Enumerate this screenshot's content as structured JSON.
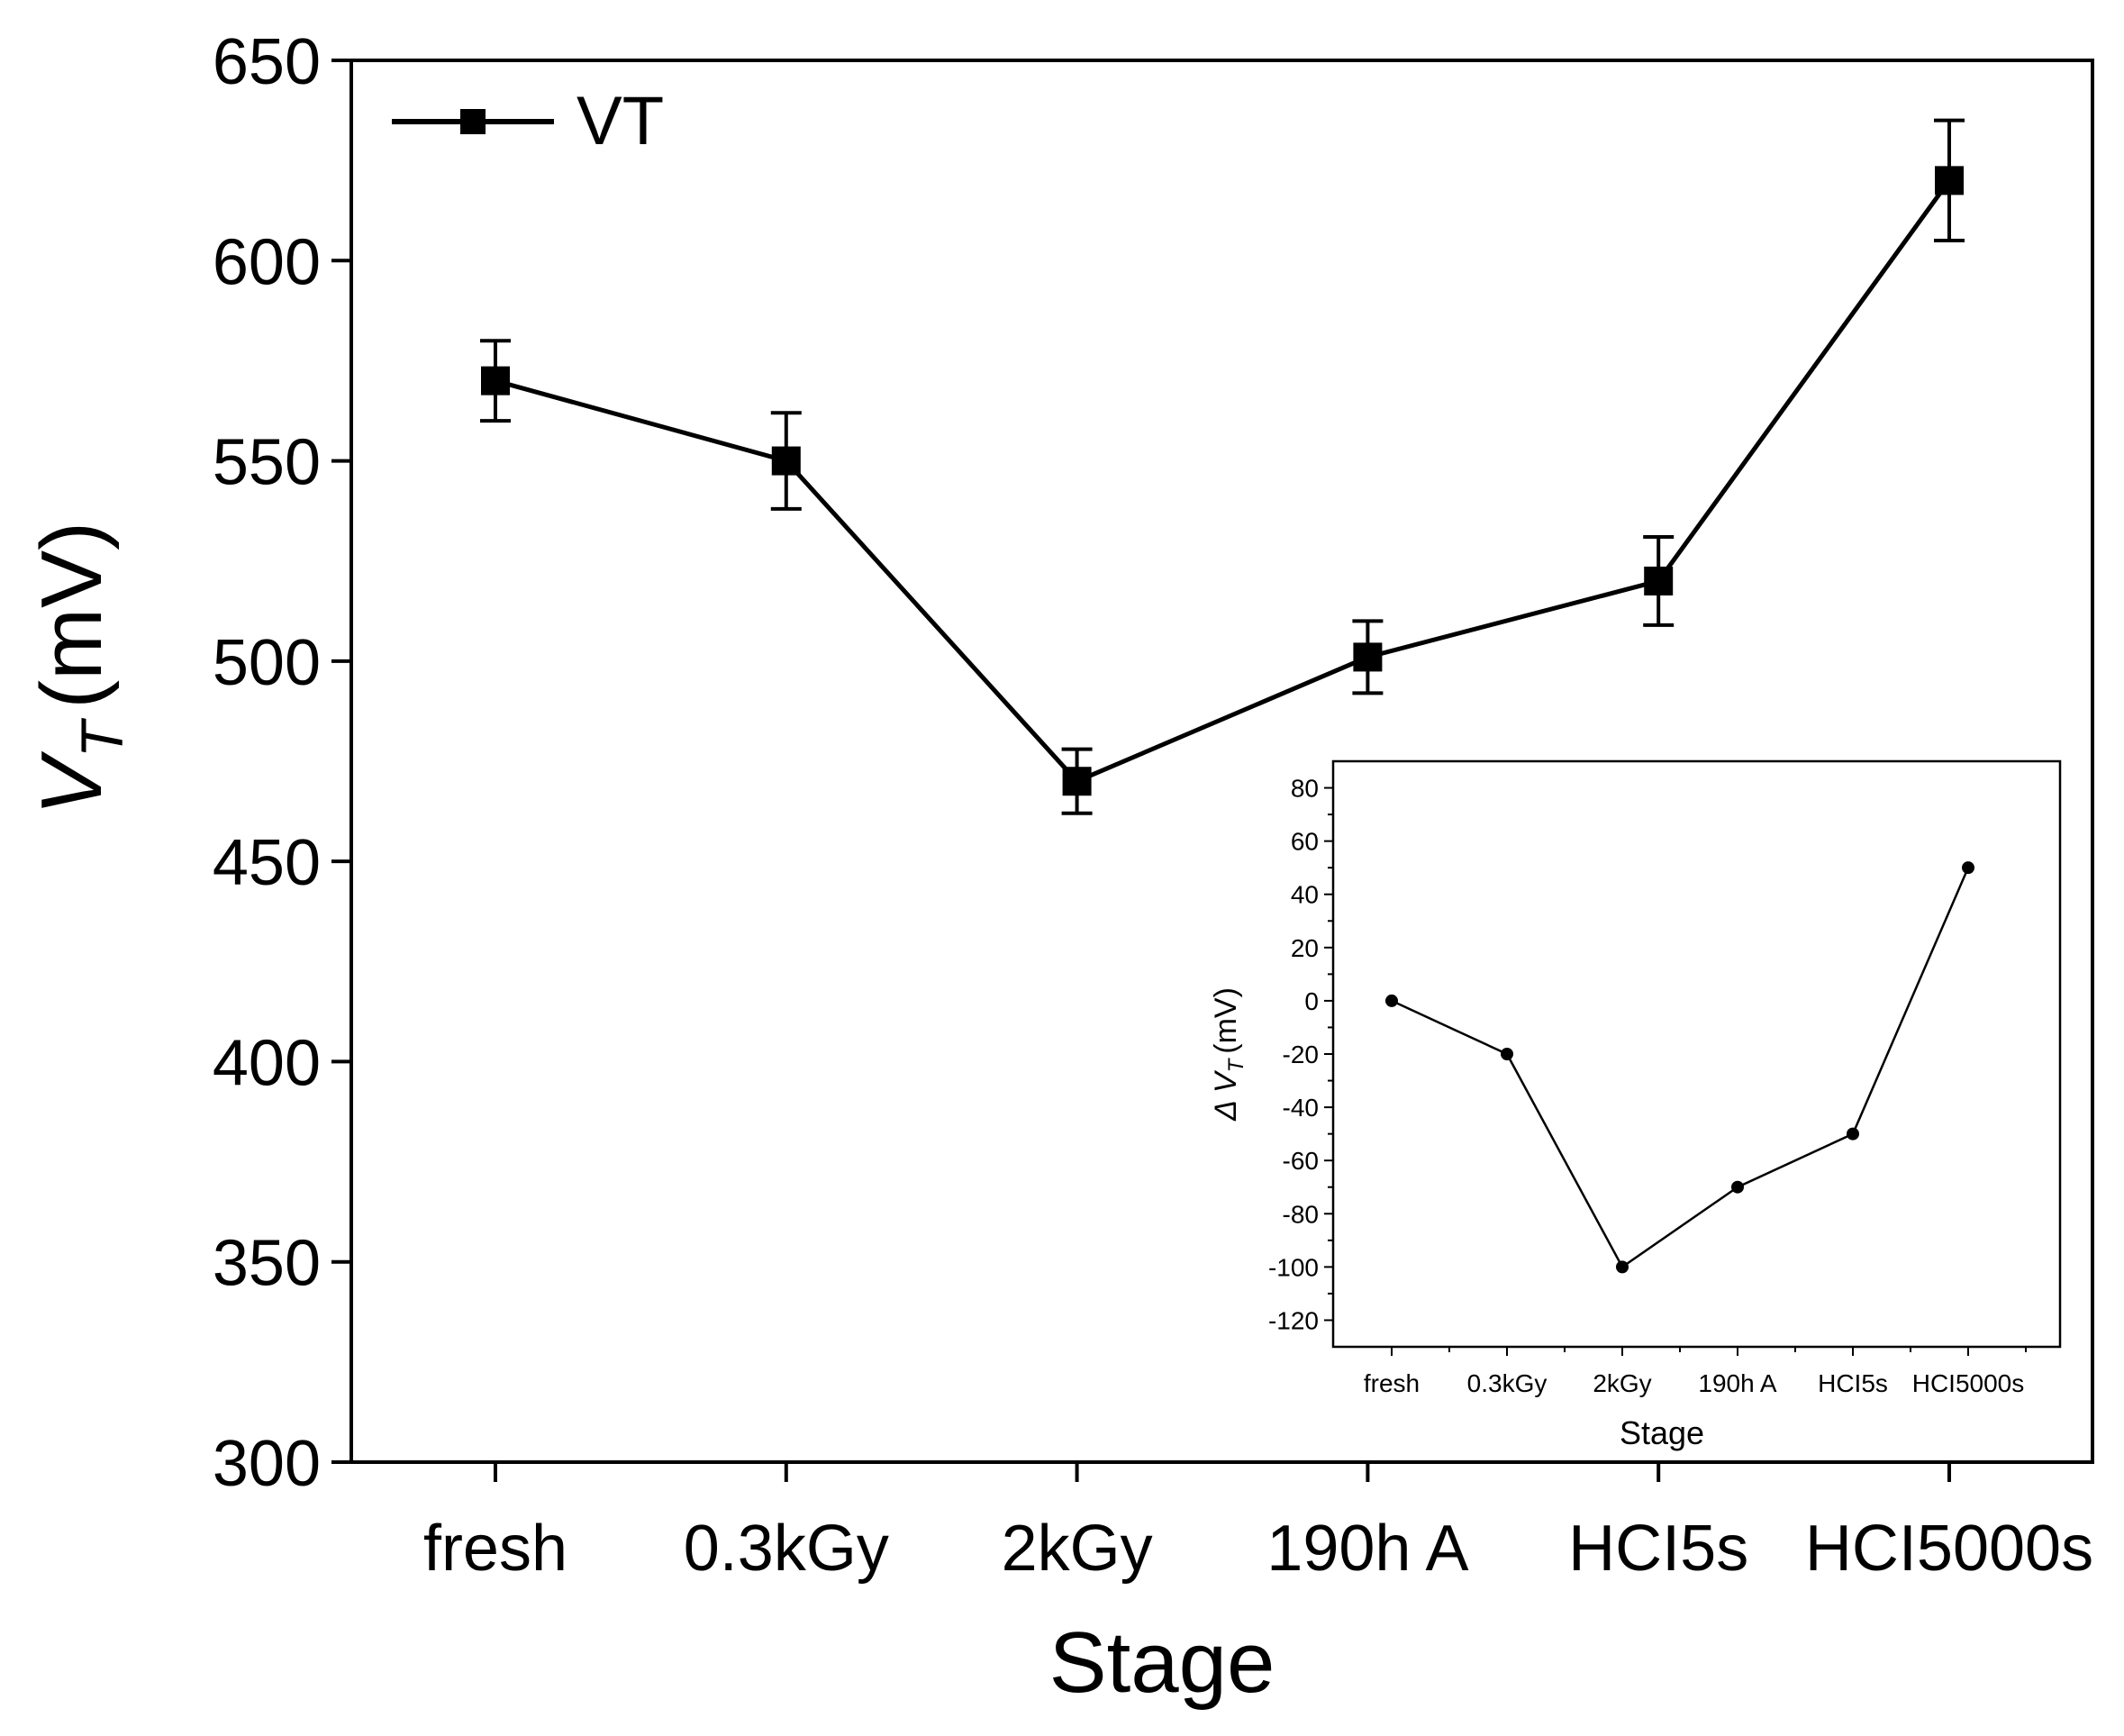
{
  "chart_data": [
    {
      "type": "line",
      "xlabel": "Stage",
      "ylabel_main": "V",
      "ylabel_sub": "T",
      "ylabel_unit": "(mV)",
      "categories": [
        "fresh",
        "0.3kGy",
        "2kGy",
        "190h A",
        "HCI5s",
        "HCI5000s"
      ],
      "ylim": [
        300,
        650
      ],
      "yticks": [
        300,
        350,
        400,
        450,
        500,
        550,
        600,
        650
      ],
      "series": [
        {
          "name": "VT",
          "values": [
            570,
            550,
            470,
            501,
            520,
            620
          ],
          "err_low": [
            560,
            538,
            462,
            492,
            509,
            605
          ],
          "err_high": [
            580,
            562,
            478,
            510,
            531,
            635
          ]
        }
      ],
      "legend": {
        "label": "VT",
        "position": "top-left"
      }
    },
    {
      "type": "line",
      "role": "inset",
      "xlabel": "Stage",
      "ylabel_prefix": "Δ",
      "ylabel_main": "V",
      "ylabel_sub": "T",
      "ylabel_unit": "(mV)",
      "categories": [
        "fresh",
        "0.3kGy",
        "2kGy",
        "190h A",
        "HCI5s",
        "HCI5000s"
      ],
      "ylim": [
        -130,
        90
      ],
      "yticks": [
        -120,
        -100,
        -80,
        -60,
        -40,
        -20,
        0,
        20,
        40,
        60,
        80
      ],
      "series": [
        {
          "name": "ΔVT",
          "values": [
            0,
            -20,
            -100,
            -70,
            -50,
            50
          ]
        }
      ]
    }
  ]
}
